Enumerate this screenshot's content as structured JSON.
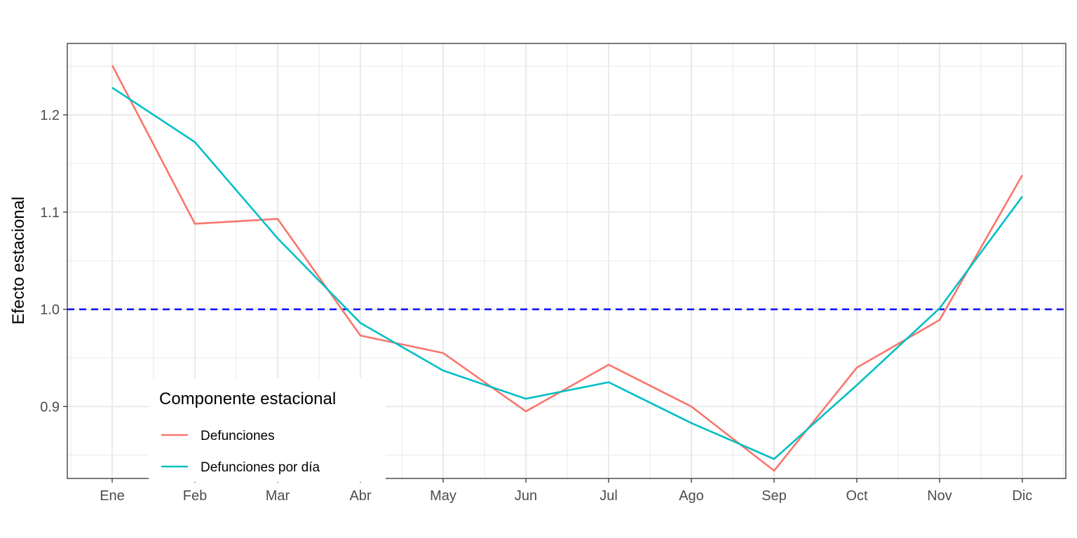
{
  "chart_data": {
    "type": "line",
    "title": "",
    "xlabel": "",
    "ylabel": "Efecto estacional",
    "categories": [
      "Ene",
      "Feb",
      "Mar",
      "Abr",
      "May",
      "Jun",
      "Jul",
      "Ago",
      "Sep",
      "Oct",
      "Nov",
      "Dic"
    ],
    "series": [
      {
        "name": "Defunciones",
        "color": "#F8766D",
        "values": [
          1.251,
          1.088,
          1.093,
          0.973,
          0.955,
          0.895,
          0.943,
          0.9,
          0.834,
          0.94,
          0.989,
          1.138
        ]
      },
      {
        "name": "Defunciones por día",
        "color": "#00BFC4",
        "values": [
          1.228,
          1.172,
          1.073,
          0.986,
          0.937,
          0.908,
          0.925,
          0.883,
          0.846,
          0.922,
          1.001,
          1.116
        ]
      }
    ],
    "ylim": [
      0.826,
      1.2735
    ],
    "yticks": [
      "0.9",
      "1.0",
      "1.1",
      "1.2"
    ],
    "reference_line": {
      "y": 1.0,
      "style": "dashed",
      "color": "#0000FF"
    },
    "grid": true,
    "legend": {
      "title": "Componente estacional",
      "placement": "bottom-left-inside"
    }
  }
}
